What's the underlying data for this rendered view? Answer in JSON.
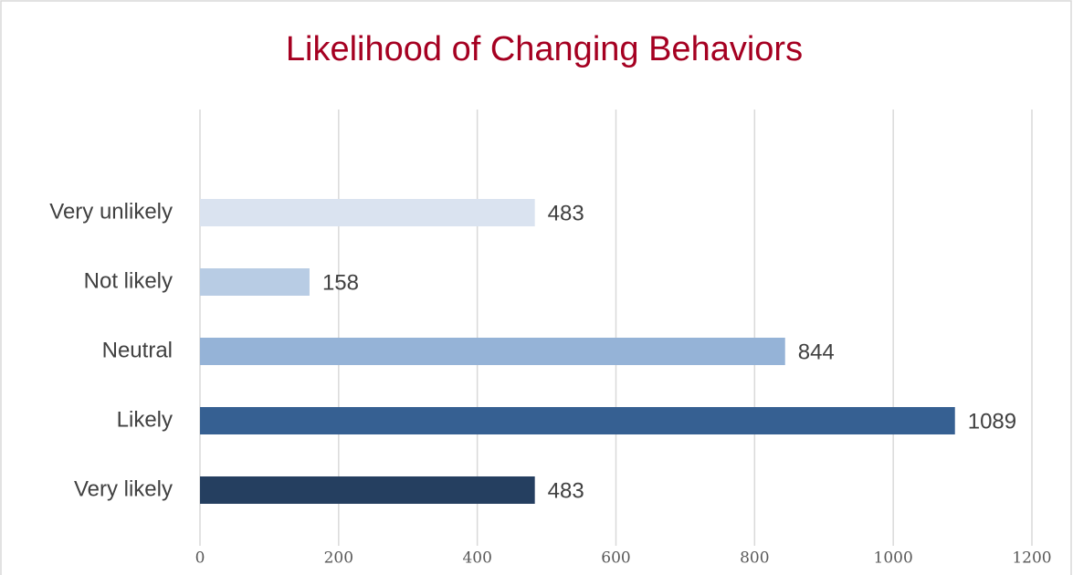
{
  "chart_data": {
    "type": "bar",
    "orientation": "horizontal",
    "title": "Likelihood of Changing Behaviors",
    "categories": [
      "Very unlikely",
      "Not likely",
      "Neutral",
      "Likely",
      "Very likely"
    ],
    "values": [
      483,
      158,
      844,
      1089,
      483
    ],
    "colors": [
      "#dae3f0",
      "#b8cce4",
      "#95b3d7",
      "#366092",
      "#253f60"
    ],
    "xlim": [
      0,
      1200
    ],
    "xticks": [
      0,
      200,
      400,
      600,
      800,
      1000,
      1200
    ],
    "grid": true
  }
}
